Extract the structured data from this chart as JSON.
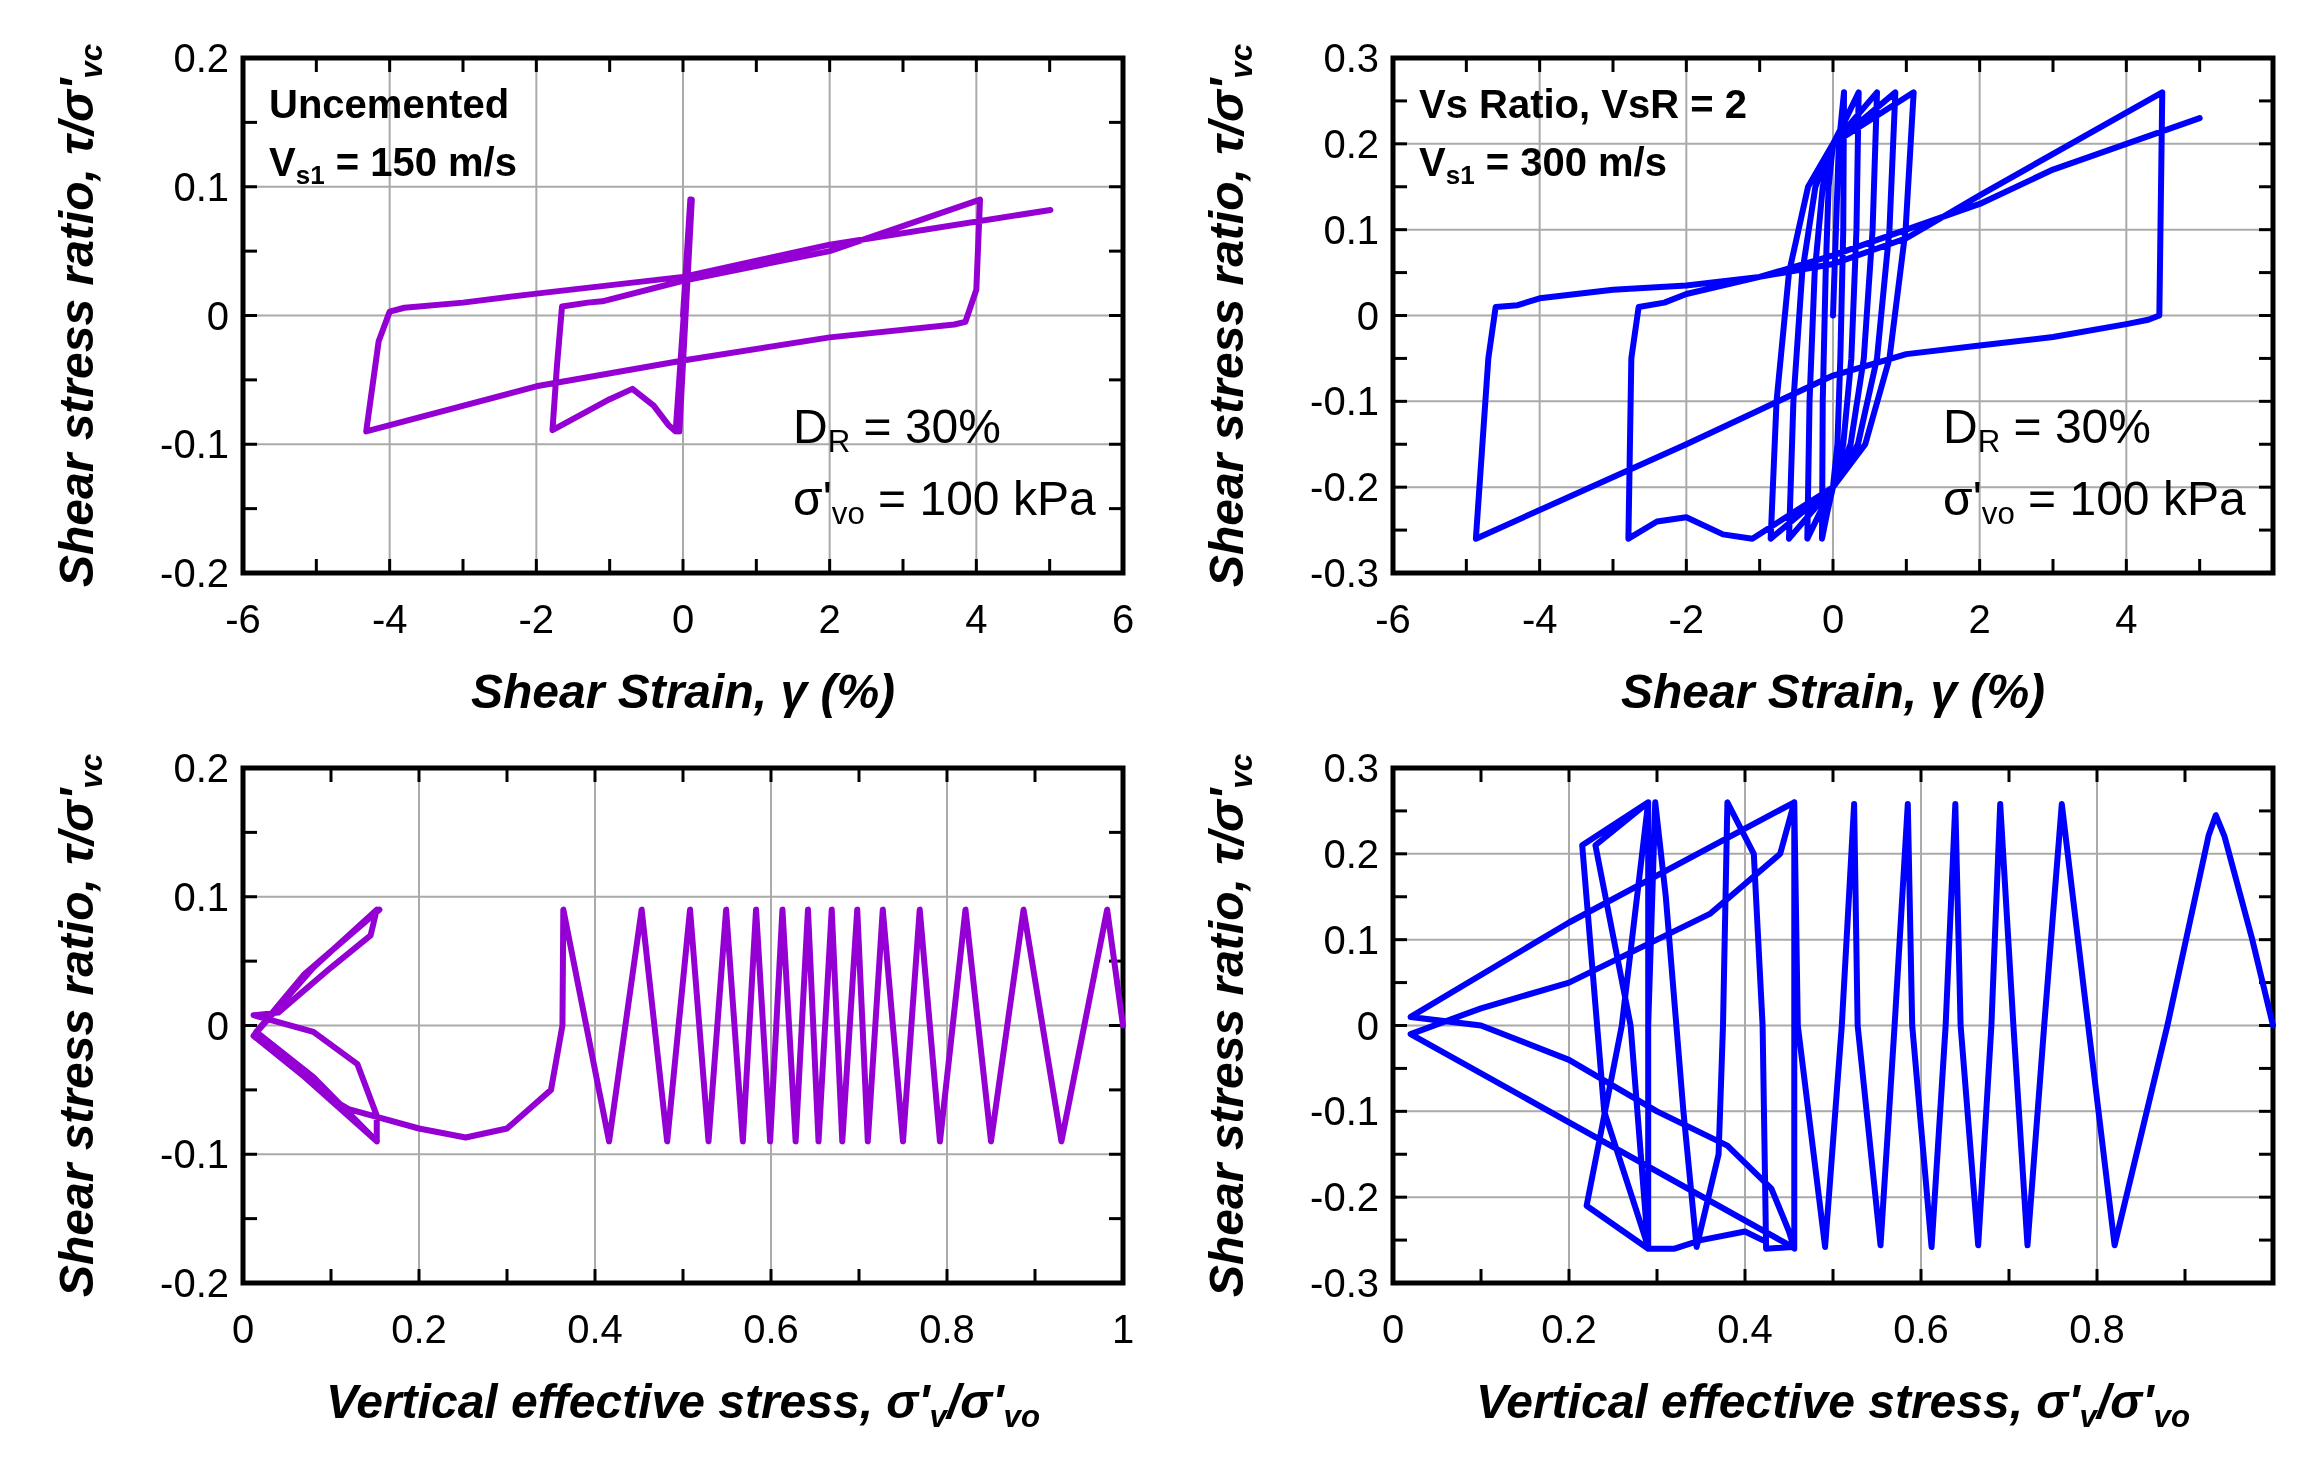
{
  "chart_data": [
    {
      "type": "line",
      "xlabel": "Shear Strain, γ (%)",
      "ylabel": "Shear stress ratio, τ/σ'$_{vc}$",
      "annotations": [
        "Uncemented",
        "V$_{s1}$ = 150 m/s",
        "D$_{R}$ = 30%",
        "σ'$_{vo}$ = 100 kPa"
      ],
      "xlim": [
        -6,
        6
      ],
      "ylim": [
        -0.2,
        0.2
      ],
      "xticks": [
        -6,
        {
          "value": -5,
          "label": null
        },
        -4,
        {
          "value": -3,
          "label": null
        },
        -2,
        {
          "value": -1,
          "label": null
        },
        0,
        {
          "value": 1,
          "label": null
        },
        2,
        {
          "value": 3,
          "label": null
        },
        4,
        {
          "value": 5,
          "label": null
        },
        6
      ],
      "yticks": [
        -0.2,
        {
          "value": -0.15,
          "label": null
        },
        -0.1,
        {
          "value": -0.05,
          "label": null
        },
        0,
        {
          "value": 0.05,
          "label": null
        },
        0.1,
        {
          "value": 0.15,
          "label": null
        },
        0.2
      ],
      "grid": true,
      "legend": false,
      "marker": "none",
      "line_style": "solid",
      "series": [
        {
          "color": "#9400d3",
          "x": [
            0,
            0.1,
            -0.05,
            0.1,
            -0.05,
            0.12,
            -0.08,
            0.12,
            -0.1,
            -0.2,
            -0.4,
            -0.69,
            -1.0,
            -1.78,
            -1.72,
            -1.65,
            -1.3,
            -1.1,
            0,
            2,
            4.05,
            4.0,
            3.85,
            3.7,
            2,
            0,
            -2,
            -4.32,
            -4.15,
            -4.0,
            -3.8,
            -3,
            -2,
            0,
            2,
            5.01
          ],
          "values": [
            0,
            0.09,
            -0.09,
            0.09,
            -0.09,
            0.09,
            -0.09,
            0.09,
            -0.09,
            -0.085,
            -0.07,
            -0.057,
            -0.065,
            -0.089,
            -0.04,
            0.007,
            0.01,
            0.011,
            0.027,
            0.05,
            0.09,
            0.02,
            -0.005,
            -0.007,
            -0.017,
            -0.035,
            -0.055,
            -0.09,
            -0.02,
            0.003,
            0.006,
            0.01,
            0.017,
            0.03,
            0.055,
            0.082
          ]
        }
      ]
    },
    {
      "type": "line",
      "xlabel": "Shear Strain, γ (%)",
      "ylabel": "Shear stress ratio, τ/σ'$_{vc}$",
      "annotations": [
        "Vs Ratio, VsR = 2",
        "V$_{s1}$ = 300 m/s",
        "D$_{R}$ = 30%",
        "σ'$_{vo}$ = 100 kPa"
      ],
      "xlim": [
        -6,
        6
      ],
      "ylim": [
        -0.3,
        0.3
      ],
      "xticks": [
        -6,
        {
          "value": -5,
          "label": null
        },
        -4,
        {
          "value": -3,
          "label": null
        },
        -2,
        {
          "value": -1,
          "label": null
        },
        0,
        {
          "value": 1,
          "label": null
        },
        2,
        {
          "value": 3,
          "label": null
        },
        4,
        {
          "value": 5,
          "label": null
        }
      ],
      "yticks": [
        -0.3,
        {
          "value": -0.25,
          "label": null
        },
        -0.2,
        {
          "value": -0.15,
          "label": null
        },
        -0.1,
        {
          "value": -0.05,
          "label": null
        },
        0,
        {
          "value": 0.05,
          "label": null
        },
        0.1,
        {
          "value": 0.15,
          "label": null
        },
        0.2,
        {
          "value": 0.25,
          "label": null
        },
        0.3
      ],
      "grid": true,
      "legend": false,
      "marker": "none",
      "line_style": "solid",
      "series": [
        {
          "color": "#0000ff",
          "x": [
            0,
            0.08,
            0.15,
            0.14,
            0.1,
            0.06,
            0,
            -0.08,
            -0.15,
            -0.14,
            -0.1,
            -0.06,
            0,
            0.18,
            0.35,
            0.32,
            0.25,
            0.14,
            0,
            -0.18,
            -0.35,
            -0.32,
            -0.25,
            -0.14,
            0,
            0.3,
            0.6,
            0.54,
            0.42,
            0.24,
            0,
            -0.3,
            -0.6,
            -0.54,
            -0.42,
            -0.24,
            0,
            0.43,
            0.85,
            0.77,
            0.6,
            0.34,
            0,
            -0.43,
            -0.85,
            -0.77,
            -0.6,
            -0.34,
            0,
            0.55,
            1.1,
            0.99,
            0.77,
            0.44,
            0,
            -0.55,
            -1.1,
            -1.5,
            -2,
            -2.4,
            -2.79,
            -2.75,
            -2.65,
            -2.3,
            -2,
            -1,
            0,
            1,
            2,
            4.49,
            4.45,
            4.3,
            4,
            3,
            2,
            1,
            0,
            -1,
            -2,
            -4.87,
            -4.7,
            -4.6,
            -4.3,
            -4,
            -3,
            -2,
            -1,
            0,
            1,
            2,
            3,
            5.0
          ],
          "values": [
            0,
            0.2,
            0.26,
            0.1,
            -0.05,
            -0.15,
            -0.2,
            -0.23,
            -0.26,
            -0.1,
            0.05,
            0.15,
            0.2,
            0.23,
            0.26,
            0.1,
            -0.05,
            -0.15,
            -0.2,
            -0.23,
            -0.26,
            -0.1,
            0.05,
            0.15,
            0.2,
            0.23,
            0.26,
            0.1,
            -0.05,
            -0.15,
            -0.2,
            -0.23,
            -0.26,
            -0.1,
            0.05,
            0.15,
            0.2,
            0.23,
            0.26,
            0.1,
            -0.05,
            -0.15,
            -0.2,
            -0.23,
            -0.26,
            -0.1,
            0.05,
            0.15,
            0.2,
            0.23,
            0.26,
            0.1,
            -0.05,
            -0.15,
            -0.2,
            -0.23,
            -0.26,
            -0.255,
            -0.235,
            -0.24,
            -0.26,
            -0.05,
            0.01,
            0.015,
            0.025,
            0.045,
            0.06,
            0.09,
            0.14,
            0.26,
            0.0,
            -0.005,
            -0.01,
            -0.025,
            -0.035,
            -0.045,
            -0.07,
            -0.11,
            -0.15,
            -0.26,
            -0.05,
            0.01,
            0.012,
            0.02,
            0.03,
            0.035,
            0.045,
            0.07,
            0.1,
            0.13,
            0.17,
            0.23
          ]
        }
      ]
    },
    {
      "type": "line",
      "xlabel": "Vertical effective stress, σ'$_{v}$/σ'$_{vo}$",
      "ylabel": "Shear stress ratio, τ/σ'$_{vc}$",
      "xlim": [
        0,
        1
      ],
      "ylim": [
        -0.2,
        0.2
      ],
      "xticks": [
        0,
        {
          "value": 0.1,
          "label": null
        },
        0.2,
        {
          "value": 0.3,
          "label": null
        },
        0.4,
        {
          "value": 0.5,
          "label": null
        },
        0.6,
        {
          "value": 0.7,
          "label": null
        },
        0.8,
        {
          "value": 0.9,
          "label": null
        },
        1
      ],
      "yticks": [
        -0.2,
        {
          "value": -0.15,
          "label": null
        },
        -0.1,
        {
          "value": -0.05,
          "label": null
        },
        0,
        {
          "value": 0.05,
          "label": null
        },
        0.1,
        {
          "value": 0.15,
          "label": null
        },
        0.2
      ],
      "grid": true,
      "legend": false,
      "marker": "none",
      "line_style": "solid",
      "series": [
        {
          "color": "#9400d3",
          "x": [
            1,
            0.982,
            0.93,
            0.887,
            0.85,
            0.821,
            0.792,
            0.769,
            0.75,
            0.727,
            0.71,
            0.698,
            0.681,
            0.669,
            0.654,
            0.642,
            0.628,
            0.613,
            0.599,
            0.583,
            0.568,
            0.549,
            0.529,
            0.508,
            0.482,
            0.453,
            0.416,
            0.364,
            0.363,
            0.35,
            0.3,
            0.253,
            0.2,
            0.12,
            0.1,
            0.152,
            0.07,
            0.012,
            0.08,
            0.152,
            0.145,
            0.1,
            0.04,
            0.012,
            0.08,
            0.13,
            0.152,
            0.152,
            0.08,
            0.015,
            0.07,
            0.155
          ],
          "values": [
            0,
            0.09,
            -0.09,
            0.09,
            -0.09,
            0.09,
            -0.09,
            0.09,
            -0.09,
            0.09,
            -0.09,
            0.09,
            -0.09,
            0.09,
            -0.09,
            0.09,
            -0.09,
            0.09,
            -0.09,
            0.09,
            -0.09,
            0.09,
            -0.09,
            0.09,
            -0.09,
            0.09,
            -0.09,
            0.09,
            0.0,
            -0.05,
            -0.08,
            -0.087,
            -0.08,
            -0.065,
            -0.057,
            -0.09,
            -0.04,
            -0.008,
            0.045,
            0.09,
            0.07,
            0.045,
            0.01,
            0.008,
            -0.005,
            -0.03,
            -0.07,
            -0.09,
            -0.04,
            -0.005,
            0.04,
            0.09
          ]
        }
      ]
    },
    {
      "type": "line",
      "xlabel": "Vertical effective stress, σ'$_{v}$/σ'$_{vo}$",
      "ylabel": "Shear stress ratio, τ/σ'$_{vc}$",
      "xlim": [
        0,
        1
      ],
      "ylim": [
        -0.3,
        0.3
      ],
      "xticks": [
        0,
        {
          "value": 0.1,
          "label": null
        },
        0.2,
        {
          "value": 0.3,
          "label": null
        },
        0.4,
        {
          "value": 0.5,
          "label": null
        },
        0.6,
        {
          "value": 0.7,
          "label": null
        },
        0.8,
        {
          "value": 0.9,
          "label": null
        }
      ],
      "yticks": [
        -0.3,
        {
          "value": -0.25,
          "label": null
        },
        -0.2,
        {
          "value": -0.15,
          "label": null
        },
        -0.1,
        {
          "value": -0.05,
          "label": null
        },
        0,
        {
          "value": 0.05,
          "label": null
        },
        0.1,
        {
          "value": 0.15,
          "label": null
        },
        0.2,
        {
          "value": 0.25,
          "label": null
        },
        0.3
      ],
      "grid": true,
      "legend": false,
      "marker": "none",
      "line_style": "solid",
      "series": [
        {
          "color": "#0000ff",
          "x": [
            1,
            0.976,
            0.945,
            0.935,
            0.927,
            0.88,
            0.82,
            0.79,
            0.76,
            0.74,
            0.721,
            0.705,
            0.69,
            0.68,
            0.665,
            0.645,
            0.639,
            0.628,
            0.612,
            0.59,
            0.585,
            0.57,
            0.554,
            0.528,
            0.524,
            0.51,
            0.491,
            0.46,
            0.456,
            0.456,
            0.45,
            0.43,
            0.38,
            0.3,
            0.2,
            0.1,
            0.02,
            0.2,
            0.456,
            0.44,
            0.36,
            0.3,
            0.2,
            0.1,
            0.02,
            0.454,
            0.424,
            0.42,
            0.41,
            0.38,
            0.375,
            0.37,
            0.345,
            0.33,
            0.31,
            0.298,
            0.29,
            0.29,
            0.24,
            0.215,
            0.29,
            0.29,
            0.22,
            0.26,
            0.29,
            0.23,
            0.27,
            0.29,
            0.32,
            0.35,
            0.4,
            0.42
          ],
          "values": [
            0,
            0.102,
            0.22,
            0.245,
            0.222,
            0.0,
            -0.256,
            0.0,
            0.258,
            0.0,
            -0.256,
            0.0,
            0.258,
            0.0,
            -0.256,
            0.0,
            0.258,
            0.0,
            -0.258,
            0.0,
            0.258,
            0.0,
            -0.256,
            0.0,
            0.258,
            0.0,
            -0.258,
            0.0,
            0.26,
            -0.26,
            -0.24,
            -0.19,
            -0.14,
            -0.1,
            -0.04,
            0.0,
            0.01,
            0.12,
            0.26,
            0.2,
            0.13,
            0.1,
            0.05,
            0.02,
            -0.01,
            -0.258,
            -0.26,
            0.0,
            0.2,
            0.26,
            0.0,
            -0.15,
            -0.258,
            -0.1,
            0.15,
            0.26,
            0.0,
            -0.258,
            -0.1,
            0.21,
            0.26,
            -0.26,
            -0.21,
            0.0,
            0.26,
            0.21,
            0.0,
            -0.26,
            -0.26,
            -0.25,
            -0.24,
            -0.25
          ]
        }
      ]
    }
  ]
}
